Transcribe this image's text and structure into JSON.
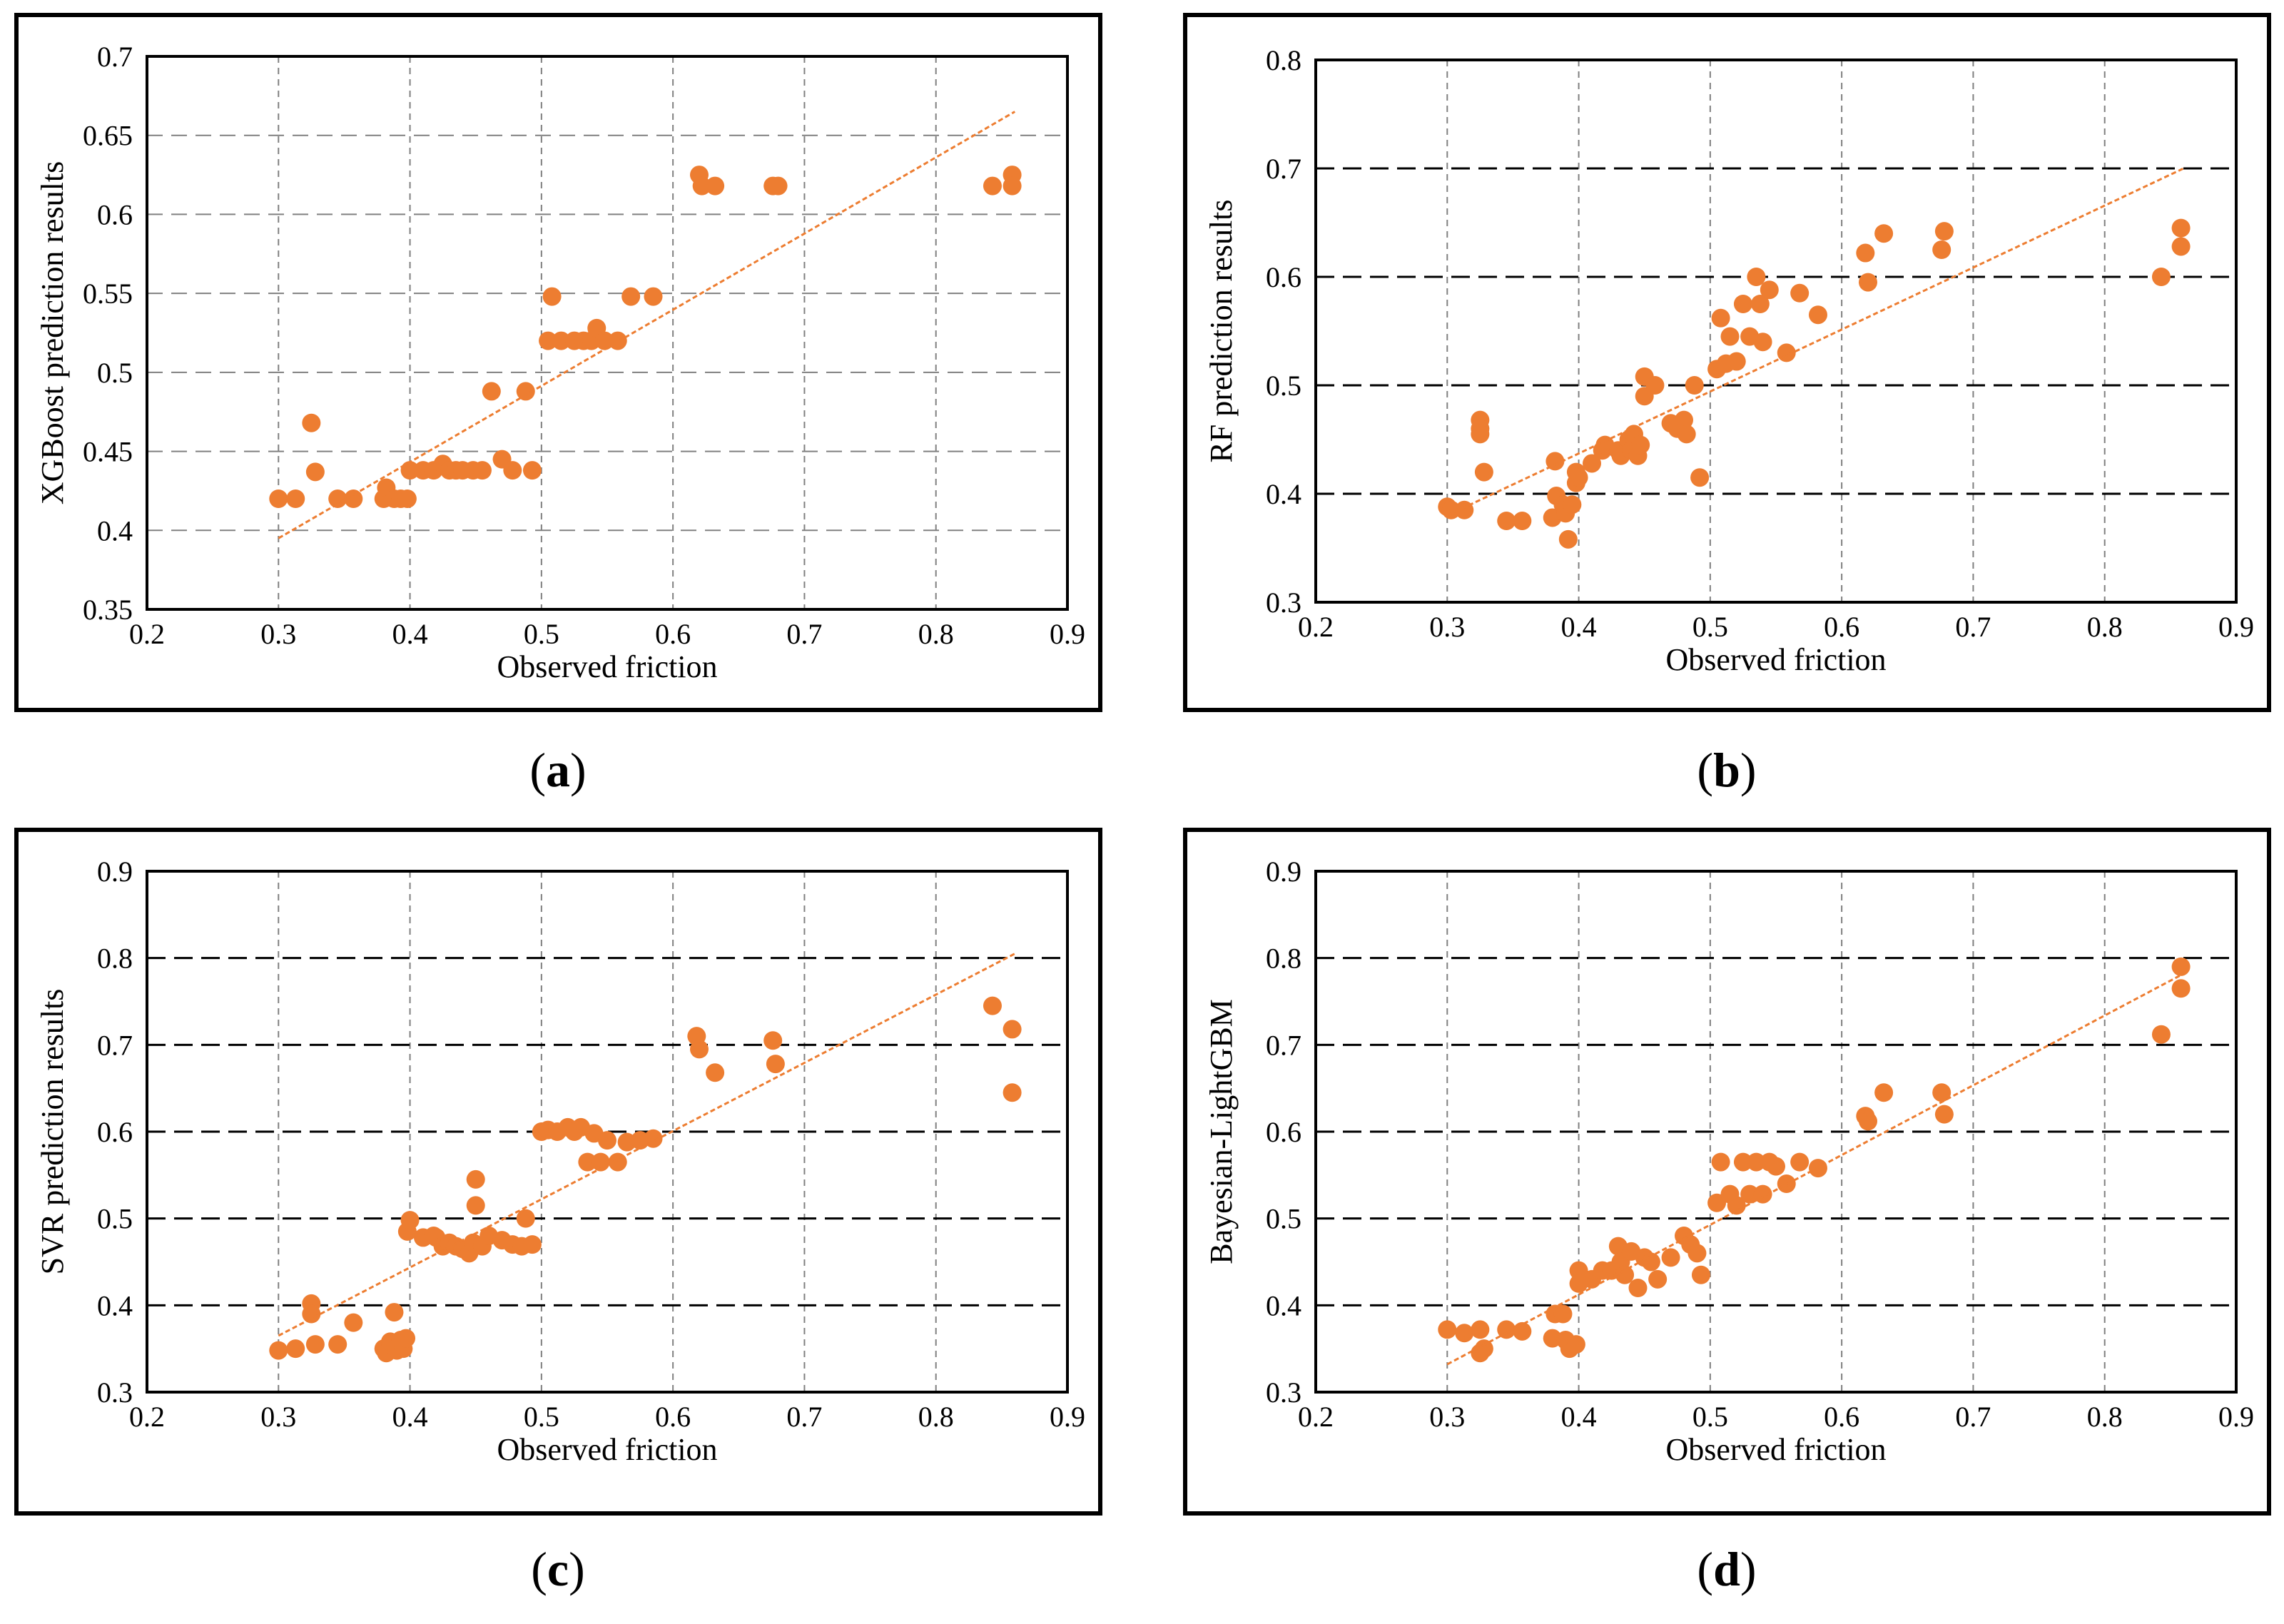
{
  "colors": {
    "marker": "#ED7D31",
    "trend": "#ED7D31",
    "grid": "#808080",
    "border": "#000000"
  },
  "chart_data": [
    {
      "type": "scatter",
      "id": "a",
      "caption": {
        "open": "(",
        "letter": "a",
        "close": ")"
      },
      "title": "",
      "xlabel": "Observed friction",
      "ylabel": "XGBoost prediction results",
      "xlim": [
        0.2,
        0.9
      ],
      "ylim": [
        0.35,
        0.7
      ],
      "xticks": [
        0.2,
        0.3,
        0.4,
        0.5,
        0.6,
        0.7,
        0.8,
        0.9
      ],
      "yticks": [
        0.35,
        0.4,
        0.45,
        0.5,
        0.55,
        0.6,
        0.65,
        0.7
      ],
      "xtick_labels": [
        "0.2",
        "0.3",
        "0.4",
        "0.5",
        "0.6",
        "0.7",
        "0.8",
        "0.9"
      ],
      "ytick_labels": [
        "0.35",
        "0.4",
        "0.45",
        "0.5",
        "0.55",
        "0.6",
        "0.65",
        "0.7"
      ],
      "hgrid_style": "dashed-gray",
      "trendline": {
        "x": [
          0.3,
          0.86
        ],
        "y": [
          0.395,
          0.665
        ]
      },
      "points": [
        [
          0.3,
          0.42
        ],
        [
          0.313,
          0.42
        ],
        [
          0.325,
          0.468
        ],
        [
          0.328,
          0.437
        ],
        [
          0.345,
          0.42
        ],
        [
          0.357,
          0.42
        ],
        [
          0.38,
          0.42
        ],
        [
          0.382,
          0.427
        ],
        [
          0.388,
          0.42
        ],
        [
          0.393,
          0.42
        ],
        [
          0.398,
          0.42
        ],
        [
          0.4,
          0.438
        ],
        [
          0.41,
          0.438
        ],
        [
          0.418,
          0.438
        ],
        [
          0.425,
          0.442
        ],
        [
          0.43,
          0.438
        ],
        [
          0.435,
          0.438
        ],
        [
          0.44,
          0.438
        ],
        [
          0.448,
          0.438
        ],
        [
          0.455,
          0.438
        ],
        [
          0.462,
          0.488
        ],
        [
          0.47,
          0.445
        ],
        [
          0.478,
          0.438
        ],
        [
          0.488,
          0.488
        ],
        [
          0.493,
          0.438
        ],
        [
          0.505,
          0.52
        ],
        [
          0.508,
          0.548
        ],
        [
          0.515,
          0.52
        ],
        [
          0.525,
          0.52
        ],
        [
          0.532,
          0.52
        ],
        [
          0.538,
          0.52
        ],
        [
          0.542,
          0.528
        ],
        [
          0.548,
          0.52
        ],
        [
          0.558,
          0.52
        ],
        [
          0.568,
          0.548
        ],
        [
          0.585,
          0.548
        ],
        [
          0.62,
          0.625
        ],
        [
          0.622,
          0.618
        ],
        [
          0.632,
          0.618
        ],
        [
          0.676,
          0.618
        ],
        [
          0.68,
          0.618
        ],
        [
          0.843,
          0.618
        ],
        [
          0.858,
          0.625
        ],
        [
          0.858,
          0.618
        ]
      ]
    },
    {
      "type": "scatter",
      "id": "b",
      "caption": {
        "open": "(",
        "letter": "b",
        "close": ")"
      },
      "title": "",
      "xlabel": "Observed friction",
      "ylabel": "RF prediction results",
      "xlim": [
        0.2,
        0.9
      ],
      "ylim": [
        0.3,
        0.8
      ],
      "xticks": [
        0.2,
        0.3,
        0.4,
        0.5,
        0.6,
        0.7,
        0.8,
        0.9
      ],
      "yticks": [
        0.3,
        0.4,
        0.5,
        0.6,
        0.7,
        0.8
      ],
      "xtick_labels": [
        "0.2",
        "0.3",
        "0.4",
        "0.5",
        "0.6",
        "0.7",
        "0.8",
        "0.9"
      ],
      "ytick_labels": [
        "0.3",
        "0.4",
        "0.5",
        "0.6",
        "0.7",
        "0.8"
      ],
      "hgrid_style": "dashed-black",
      "trendline": {
        "x": [
          0.3,
          0.86
        ],
        "y": [
          0.38,
          0.7
        ]
      },
      "points": [
        [
          0.3,
          0.388
        ],
        [
          0.303,
          0.385
        ],
        [
          0.313,
          0.385
        ],
        [
          0.325,
          0.468
        ],
        [
          0.325,
          0.46
        ],
        [
          0.325,
          0.455
        ],
        [
          0.328,
          0.42
        ],
        [
          0.345,
          0.375
        ],
        [
          0.357,
          0.375
        ],
        [
          0.38,
          0.378
        ],
        [
          0.382,
          0.43
        ],
        [
          0.383,
          0.398
        ],
        [
          0.388,
          0.39
        ],
        [
          0.39,
          0.382
        ],
        [
          0.392,
          0.358
        ],
        [
          0.395,
          0.39
        ],
        [
          0.398,
          0.42
        ],
        [
          0.398,
          0.41
        ],
        [
          0.4,
          0.415
        ],
        [
          0.41,
          0.428
        ],
        [
          0.418,
          0.44
        ],
        [
          0.42,
          0.445
        ],
        [
          0.43,
          0.44
        ],
        [
          0.432,
          0.435
        ],
        [
          0.438,
          0.45
        ],
        [
          0.44,
          0.44
        ],
        [
          0.442,
          0.455
        ],
        [
          0.445,
          0.435
        ],
        [
          0.447,
          0.445
        ],
        [
          0.45,
          0.49
        ],
        [
          0.45,
          0.508
        ],
        [
          0.458,
          0.5
        ],
        [
          0.47,
          0.465
        ],
        [
          0.475,
          0.46
        ],
        [
          0.48,
          0.468
        ],
        [
          0.482,
          0.455
        ],
        [
          0.488,
          0.5
        ],
        [
          0.492,
          0.415
        ],
        [
          0.505,
          0.515
        ],
        [
          0.508,
          0.562
        ],
        [
          0.512,
          0.52
        ],
        [
          0.515,
          0.545
        ],
        [
          0.52,
          0.522
        ],
        [
          0.525,
          0.575
        ],
        [
          0.53,
          0.545
        ],
        [
          0.535,
          0.6
        ],
        [
          0.538,
          0.575
        ],
        [
          0.54,
          0.54
        ],
        [
          0.545,
          0.588
        ],
        [
          0.558,
          0.53
        ],
        [
          0.568,
          0.585
        ],
        [
          0.582,
          0.565
        ],
        [
          0.618,
          0.622
        ],
        [
          0.62,
          0.595
        ],
        [
          0.632,
          0.64
        ],
        [
          0.676,
          0.625
        ],
        [
          0.678,
          0.642
        ],
        [
          0.843,
          0.6
        ],
        [
          0.858,
          0.645
        ],
        [
          0.858,
          0.628
        ]
      ]
    },
    {
      "type": "scatter",
      "id": "c",
      "caption": {
        "open": "(",
        "letter": "c",
        "close": ")"
      },
      "title": "",
      "xlabel": "Observed friction",
      "ylabel": "SVR prediction results",
      "xlim": [
        0.2,
        0.9
      ],
      "ylim": [
        0.3,
        0.9
      ],
      "xticks": [
        0.2,
        0.3,
        0.4,
        0.5,
        0.6,
        0.7,
        0.8,
        0.9
      ],
      "yticks": [
        0.3,
        0.4,
        0.5,
        0.6,
        0.7,
        0.8,
        0.9
      ],
      "xtick_labels": [
        "0.2",
        "0.3",
        "0.4",
        "0.5",
        "0.6",
        "0.7",
        "0.8",
        "0.9"
      ],
      "ytick_labels": [
        "0.3",
        "0.4",
        "0.5",
        "0.6",
        "0.7",
        "0.8",
        "0.9"
      ],
      "hgrid_style": "dashed-black",
      "trendline": {
        "x": [
          0.3,
          0.86
        ],
        "y": [
          0.365,
          0.805
        ]
      },
      "points": [
        [
          0.3,
          0.348
        ],
        [
          0.313,
          0.35
        ],
        [
          0.325,
          0.402
        ],
        [
          0.325,
          0.39
        ],
        [
          0.328,
          0.355
        ],
        [
          0.345,
          0.355
        ],
        [
          0.357,
          0.38
        ],
        [
          0.38,
          0.35
        ],
        [
          0.382,
          0.345
        ],
        [
          0.385,
          0.358
        ],
        [
          0.388,
          0.392
        ],
        [
          0.39,
          0.348
        ],
        [
          0.393,
          0.36
        ],
        [
          0.395,
          0.35
        ],
        [
          0.397,
          0.362
        ],
        [
          0.398,
          0.485
        ],
        [
          0.4,
          0.498
        ],
        [
          0.41,
          0.478
        ],
        [
          0.418,
          0.48
        ],
        [
          0.42,
          0.478
        ],
        [
          0.425,
          0.468
        ],
        [
          0.43,
          0.472
        ],
        [
          0.435,
          0.468
        ],
        [
          0.44,
          0.465
        ],
        [
          0.445,
          0.46
        ],
        [
          0.448,
          0.472
        ],
        [
          0.45,
          0.515
        ],
        [
          0.45,
          0.545
        ],
        [
          0.455,
          0.468
        ],
        [
          0.46,
          0.48
        ],
        [
          0.47,
          0.475
        ],
        [
          0.478,
          0.47
        ],
        [
          0.485,
          0.468
        ],
        [
          0.488,
          0.5
        ],
        [
          0.493,
          0.47
        ],
        [
          0.5,
          0.6
        ],
        [
          0.505,
          0.602
        ],
        [
          0.512,
          0.6
        ],
        [
          0.52,
          0.605
        ],
        [
          0.525,
          0.6
        ],
        [
          0.53,
          0.605
        ],
        [
          0.535,
          0.565
        ],
        [
          0.54,
          0.598
        ],
        [
          0.545,
          0.565
        ],
        [
          0.55,
          0.59
        ],
        [
          0.558,
          0.565
        ],
        [
          0.565,
          0.588
        ],
        [
          0.575,
          0.59
        ],
        [
          0.585,
          0.592
        ],
        [
          0.618,
          0.71
        ],
        [
          0.62,
          0.695
        ],
        [
          0.632,
          0.668
        ],
        [
          0.676,
          0.705
        ],
        [
          0.678,
          0.678
        ],
        [
          0.843,
          0.745
        ],
        [
          0.858,
          0.718
        ],
        [
          0.858,
          0.645
        ]
      ]
    },
    {
      "type": "scatter",
      "id": "d",
      "caption": {
        "open": "(",
        "letter": "d",
        "close": ")"
      },
      "title": "",
      "xlabel": "Observed friction",
      "ylabel": "Bayesian-LightGBM",
      "xlim": [
        0.2,
        0.9
      ],
      "ylim": [
        0.3,
        0.9
      ],
      "xticks": [
        0.2,
        0.3,
        0.4,
        0.5,
        0.6,
        0.7,
        0.8,
        0.9
      ],
      "yticks": [
        0.3,
        0.4,
        0.5,
        0.6,
        0.7,
        0.8,
        0.9
      ],
      "xtick_labels": [
        "0.2",
        "0.3",
        "0.4",
        "0.5",
        "0.6",
        "0.7",
        "0.8",
        "0.9"
      ],
      "ytick_labels": [
        "0.3",
        "0.4",
        "0.5",
        "0.6",
        "0.7",
        "0.8",
        "0.9"
      ],
      "hgrid_style": "dashed-black",
      "trendline": {
        "x": [
          0.3,
          0.86
        ],
        "y": [
          0.332,
          0.782
        ]
      },
      "points": [
        [
          0.3,
          0.372
        ],
        [
          0.313,
          0.368
        ],
        [
          0.325,
          0.372
        ],
        [
          0.325,
          0.345
        ],
        [
          0.328,
          0.35
        ],
        [
          0.345,
          0.372
        ],
        [
          0.357,
          0.37
        ],
        [
          0.38,
          0.362
        ],
        [
          0.382,
          0.39
        ],
        [
          0.388,
          0.39
        ],
        [
          0.39,
          0.36
        ],
        [
          0.393,
          0.35
        ],
        [
          0.398,
          0.355
        ],
        [
          0.4,
          0.44
        ],
        [
          0.4,
          0.425
        ],
        [
          0.41,
          0.43
        ],
        [
          0.418,
          0.44
        ],
        [
          0.425,
          0.44
        ],
        [
          0.43,
          0.468
        ],
        [
          0.432,
          0.45
        ],
        [
          0.435,
          0.435
        ],
        [
          0.44,
          0.462
        ],
        [
          0.445,
          0.42
        ],
        [
          0.45,
          0.455
        ],
        [
          0.455,
          0.45
        ],
        [
          0.46,
          0.43
        ],
        [
          0.47,
          0.455
        ],
        [
          0.48,
          0.48
        ],
        [
          0.485,
          0.47
        ],
        [
          0.49,
          0.46
        ],
        [
          0.493,
          0.435
        ],
        [
          0.505,
          0.518
        ],
        [
          0.508,
          0.565
        ],
        [
          0.515,
          0.528
        ],
        [
          0.52,
          0.515
        ],
        [
          0.525,
          0.565
        ],
        [
          0.53,
          0.528
        ],
        [
          0.535,
          0.565
        ],
        [
          0.54,
          0.528
        ],
        [
          0.545,
          0.565
        ],
        [
          0.55,
          0.56
        ],
        [
          0.558,
          0.54
        ],
        [
          0.568,
          0.565
        ],
        [
          0.582,
          0.558
        ],
        [
          0.618,
          0.618
        ],
        [
          0.62,
          0.612
        ],
        [
          0.632,
          0.645
        ],
        [
          0.676,
          0.645
        ],
        [
          0.678,
          0.62
        ],
        [
          0.843,
          0.712
        ],
        [
          0.858,
          0.79
        ],
        [
          0.858,
          0.765
        ]
      ]
    }
  ]
}
